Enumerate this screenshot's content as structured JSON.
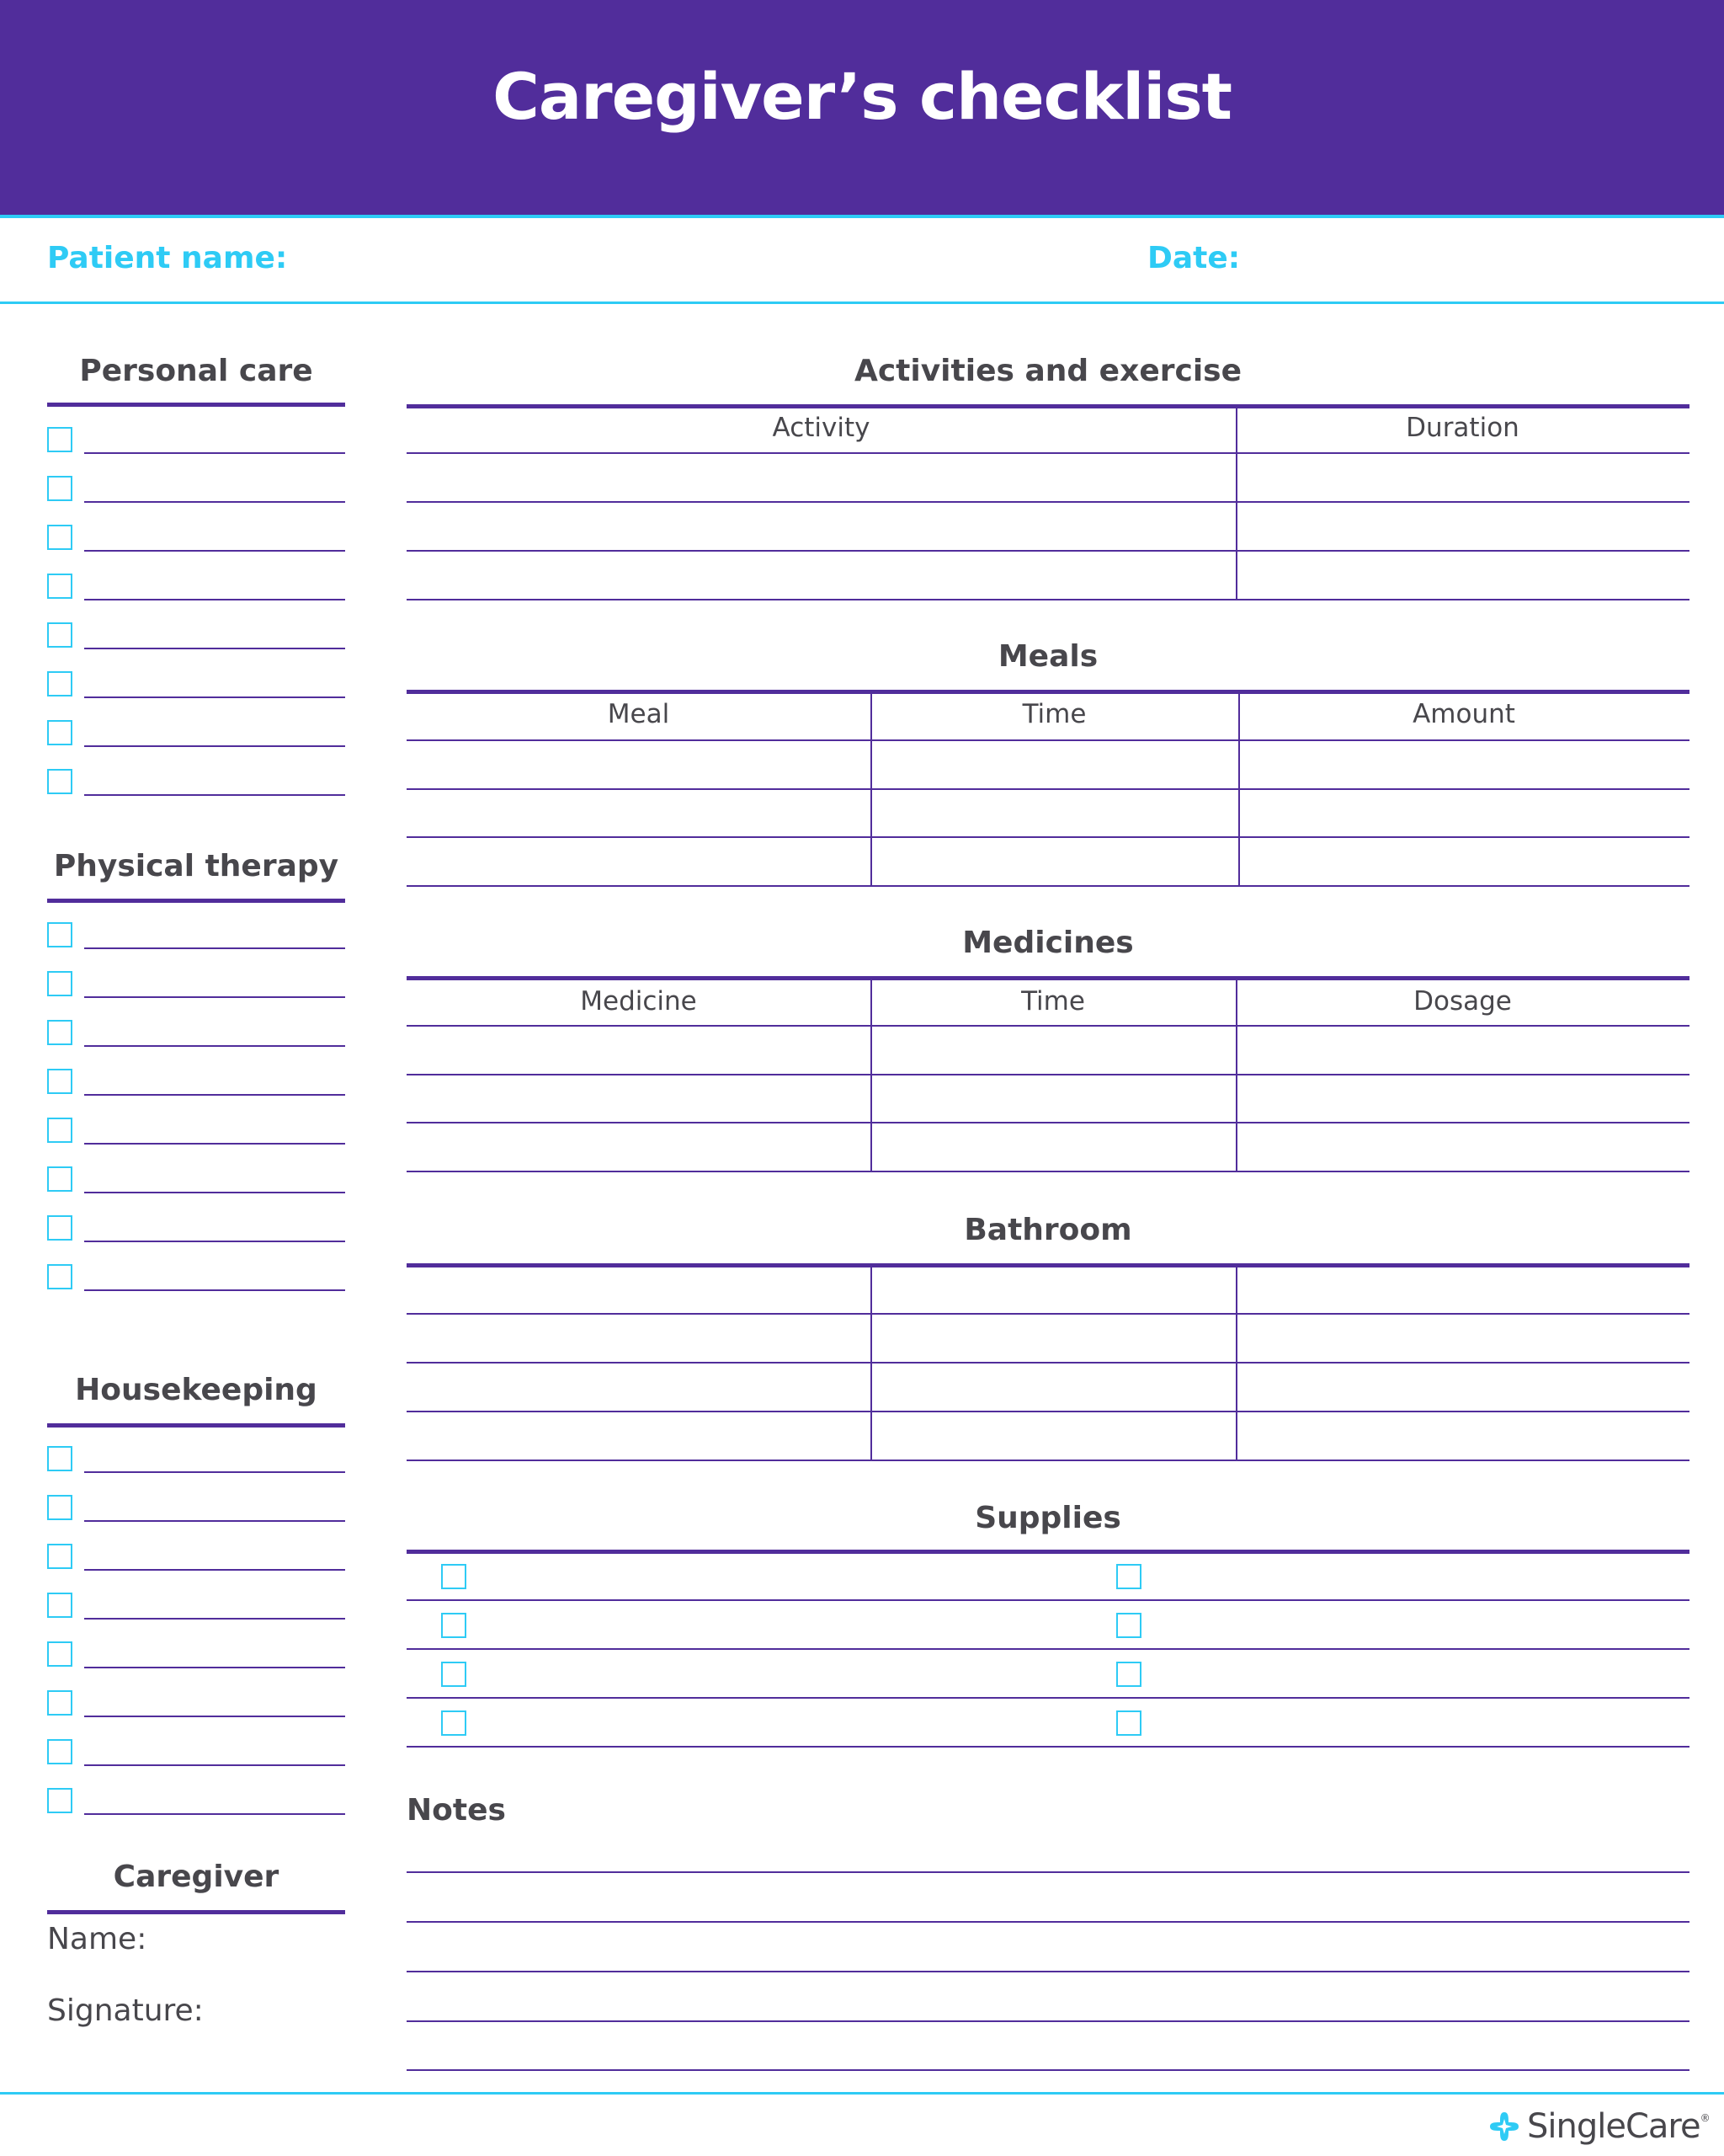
{
  "header": {
    "title": "Caregiver’s checklist"
  },
  "fields": {
    "patient_name_label": "Patient name:",
    "date_label": "Date:"
  },
  "left": {
    "personal_care": "Personal care",
    "physical_therapy": "Physical therapy",
    "housekeeping": "Housekeeping",
    "caregiver": {
      "title": "Caregiver",
      "name_label": "Name:",
      "signature_label": "Signature:"
    }
  },
  "right": {
    "activities": {
      "title": "Activities and exercise",
      "columns": [
        "Activity",
        "Duration"
      ]
    },
    "meals": {
      "title": "Meals",
      "columns": [
        "Meal",
        "Time",
        "Amount"
      ]
    },
    "medicines": {
      "title": "Medicines",
      "columns": [
        "Medicine",
        "Time",
        "Dosage"
      ]
    },
    "bathroom": {
      "title": "Bathroom"
    },
    "supplies": {
      "title": "Supplies"
    },
    "notes": {
      "title": "Notes"
    }
  },
  "footer": {
    "logo_text": "SingleCare",
    "logo_icon": "singlecare-cross-icon"
  },
  "colors": {
    "primary": "#512d9b",
    "accent": "#2ecbf5",
    "text": "#48474c"
  }
}
